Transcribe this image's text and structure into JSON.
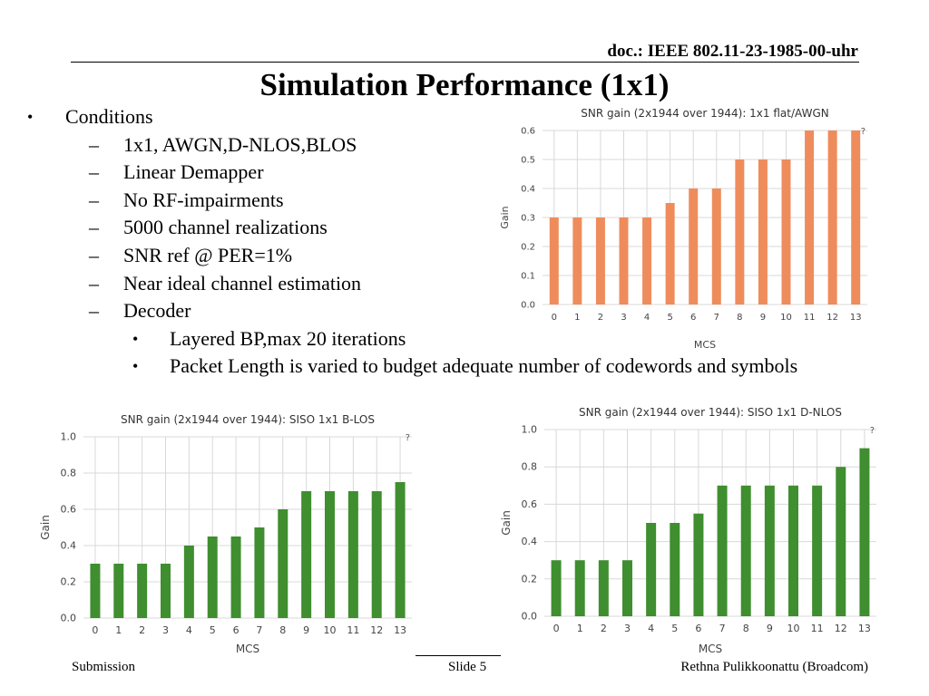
{
  "header": {
    "doc_id": "doc.: IEEE 802.11-23-1985-00-uhr"
  },
  "title": "Simulation Performance (1x1)",
  "bullets": {
    "conditions_label": "Conditions",
    "items": [
      "1x1, AWGN,D-NLOS,BLOS",
      "Linear Demapper",
      "No RF-impairments",
      "5000 channel realizations",
      "SNR ref @ PER=1%",
      "Near ideal channel estimation",
      "Decoder"
    ],
    "decoder_items": [
      "Layered BP,max 20 iterations",
      "Packet Length is varied to budget adequate number of codewords and symbols"
    ],
    "bullet_symbol": "•",
    "dash_symbol": "–"
  },
  "chart_data": [
    {
      "type": "bar",
      "title": "SNR gain (2x1944 over 1944): 1x1 flat/AWGN",
      "xlabel": "MCS",
      "ylabel": "Gain",
      "categories": [
        "0",
        "1",
        "2",
        "3",
        "4",
        "5",
        "6",
        "7",
        "8",
        "9",
        "10",
        "11",
        "12",
        "13"
      ],
      "values": [
        0.3,
        0.3,
        0.3,
        0.3,
        0.3,
        0.35,
        0.4,
        0.4,
        0.5,
        0.5,
        0.5,
        0.6,
        0.6,
        0.6
      ],
      "ylim": [
        0,
        0.6
      ],
      "yticks": [
        "0.0",
        "0.1",
        "0.2",
        "0.3",
        "0.4",
        "0.5",
        "0.6"
      ],
      "color": "#ef8c5c",
      "help_mark": "?",
      "grid": true
    },
    {
      "type": "bar",
      "title": "SNR gain (2x1944 over 1944): SISO 1x1 B-LOS",
      "xlabel": "MCS",
      "ylabel": "Gain",
      "categories": [
        "0",
        "1",
        "2",
        "3",
        "4",
        "5",
        "6",
        "7",
        "8",
        "9",
        "10",
        "11",
        "12",
        "13"
      ],
      "values": [
        0.3,
        0.3,
        0.3,
        0.3,
        0.4,
        0.45,
        0.45,
        0.5,
        0.6,
        0.7,
        0.7,
        0.7,
        0.7,
        0.75
      ],
      "ylim": [
        0,
        1.0
      ],
      "yticks": [
        "0.0",
        "0.2",
        "0.4",
        "0.6",
        "0.8",
        "1.0"
      ],
      "color": "#3f8e2f",
      "help_mark": "?",
      "grid": true
    },
    {
      "type": "bar",
      "title": "SNR gain (2x1944 over 1944): SISO 1x1 D-NLOS",
      "xlabel": "MCS",
      "ylabel": "Gain",
      "categories": [
        "0",
        "1",
        "2",
        "3",
        "4",
        "5",
        "6",
        "7",
        "8",
        "9",
        "10",
        "11",
        "12",
        "13"
      ],
      "values": [
        0.3,
        0.3,
        0.3,
        0.3,
        0.5,
        0.5,
        0.55,
        0.7,
        0.7,
        0.7,
        0.7,
        0.7,
        0.8,
        0.9
      ],
      "ylim": [
        0,
        1.0
      ],
      "yticks": [
        "0.0",
        "0.2",
        "0.4",
        "0.6",
        "0.8",
        "1.0"
      ],
      "color": "#3f8e2f",
      "help_mark": "?",
      "grid": true
    }
  ],
  "footer": {
    "left": "Submission",
    "middle": "Slide 5",
    "right": "Rethna Pulikkoonattu (Broadcom)"
  }
}
